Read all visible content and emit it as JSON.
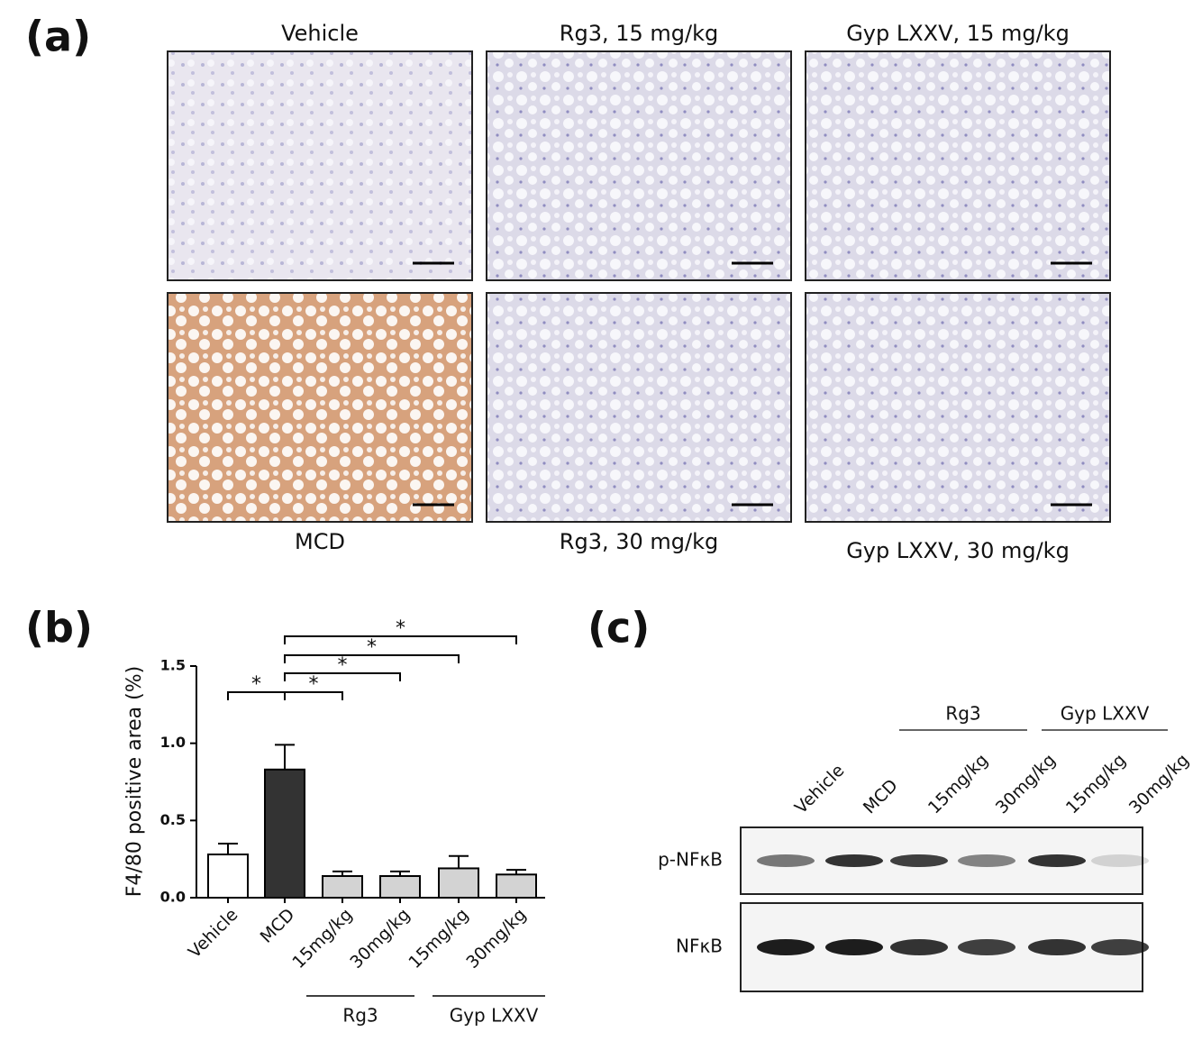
{
  "panel_a": {
    "label": "(a)",
    "images": [
      {
        "label": "Vehicle"
      },
      {
        "label": "Rg3, 15 mg/kg"
      },
      {
        "label": "Gyp LXXV, 15 mg/kg"
      },
      {
        "label": "MCD"
      },
      {
        "label": "Rg3, 30 mg/kg"
      },
      {
        "label": "Gyp LXXV, 30 mg/kg"
      }
    ]
  },
  "chart_data": {
    "type": "bar",
    "label": "(b)",
    "ylabel": "F4/80 positive area (%)",
    "categories": [
      "Vehicle",
      "MCD",
      "15mg/kg",
      "30mg/kg",
      "15mg/kg",
      "30mg/kg"
    ],
    "values": [
      0.28,
      0.83,
      0.14,
      0.14,
      0.19,
      0.15
    ],
    "errors": [
      0.07,
      0.16,
      0.03,
      0.03,
      0.08,
      0.03
    ],
    "colors": [
      "#ffffff",
      "#333333",
      "#d3d3d3",
      "#d3d3d3",
      "#d3d3d3",
      "#d3d3d3"
    ],
    "ylim": [
      0,
      1.5
    ],
    "yticks": [
      {
        "value": 0,
        "label": "0.0"
      },
      {
        "value": 0.5,
        "label": "0.5"
      },
      {
        "value": 1,
        "label": "1.0"
      },
      {
        "value": 1.5,
        "label": "1.5"
      }
    ],
    "groups": [
      {
        "name": "Rg3"
      },
      {
        "name": "Gyp LXXV"
      }
    ],
    "significance": [
      {
        "text": "*"
      },
      {
        "text": "*"
      },
      {
        "text": "*"
      },
      {
        "text": "*"
      },
      {
        "text": "*"
      }
    ]
  },
  "panel_c": {
    "label": "(c)",
    "groups": [
      {
        "name": "Rg3"
      },
      {
        "name": "Gyp LXXV"
      }
    ],
    "lanes": [
      "Vehicle",
      "MCD",
      "15mg/kg",
      "30mg/kg",
      "15mg/kg",
      "30mg/kg"
    ],
    "rows": [
      "p-NFκB",
      "NFκB"
    ]
  }
}
